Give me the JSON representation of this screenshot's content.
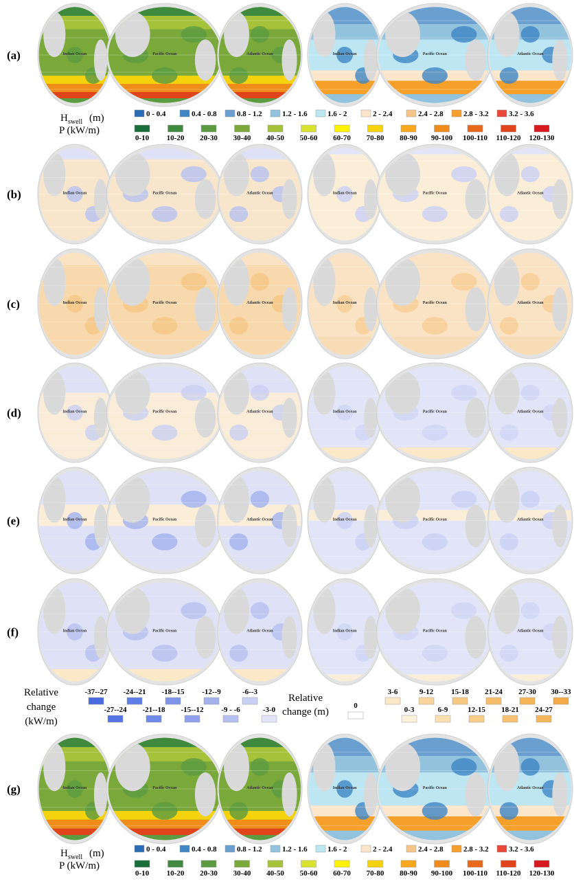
{
  "panels": [
    {
      "label": "(a)",
      "maps": [
        {
          "ocean_labels": [
            "Indian Ocean",
            "Pacific Ocean",
            "Atlantic Ocean"
          ]
        },
        {
          "ocean_labels": [
            "Indian Ocean",
            "Pacific Ocean",
            "Atlantic Ocean"
          ]
        }
      ]
    },
    {
      "label": "(b)",
      "maps": [
        {
          "ocean_labels": [
            "Indian Ocean",
            "Pacific Ocean",
            "Atlantic Ocean"
          ]
        },
        {
          "ocean_labels": [
            "Indian Ocean",
            "Pacific Ocean",
            "Atlantic Ocean"
          ]
        }
      ]
    },
    {
      "label": "(c)",
      "maps": [
        {
          "ocean_labels": [
            "Indian Ocean",
            "Pacific Ocean",
            "Atlantic Ocean"
          ]
        },
        {
          "ocean_labels": [
            "Indian Ocean",
            "Pacific Ocean",
            "Atlantic Ocean"
          ]
        }
      ]
    },
    {
      "label": "(d)",
      "maps": [
        {
          "ocean_labels": [
            "Indian Ocean",
            "Pacific Ocean",
            "Atlantic Ocean"
          ]
        },
        {
          "ocean_labels": [
            "Indian Ocean",
            "Pacific Ocean",
            "Atlantic Ocean"
          ]
        }
      ]
    },
    {
      "label": "(e)",
      "maps": [
        {
          "ocean_labels": [
            "Indian Ocean",
            "Pacific Ocean",
            "Atlantic Ocean"
          ]
        },
        {
          "ocean_labels": [
            "Indian Ocean",
            "Pacific Ocean",
            "Atlantic Ocean"
          ]
        }
      ]
    },
    {
      "label": "(f)",
      "maps": [
        {
          "ocean_labels": [
            "Indian Ocean",
            "Pacific Ocean",
            "Atlantic Ocean"
          ]
        },
        {
          "ocean_labels": [
            "Indian Ocean",
            "Pacific Ocean",
            "Atlantic Ocean"
          ]
        }
      ]
    },
    {
      "label": "(g)",
      "maps": [
        {
          "ocean_labels": [
            "Indian Ocean",
            "Pacific Ocean",
            "Atlantic Ocean"
          ]
        },
        {
          "ocean_labels": [
            "Indian Ocean",
            "Pacific Ocean",
            "Atlantic Ocean"
          ]
        }
      ]
    }
  ],
  "legends": [
    {
      "h_label": {
        "main": "H",
        "sub": "swell",
        "unit": "(m)"
      },
      "h_items": [
        {
          "label": "0 - 0.4",
          "color": "#2a6db5"
        },
        {
          "label": "0.4 - 0.8",
          "color": "#3f86c4"
        },
        {
          "label": "0.8 - 1.2",
          "color": "#6a9fcf"
        },
        {
          "label": "1.2 - 1.6",
          "color": "#93c2dd"
        },
        {
          "label": "1.6 - 2",
          "color": "#bde6f2"
        },
        {
          "label": "2 - 2.4",
          "color": "#fbe6cc"
        },
        {
          "label": "2.4 - 2.8",
          "color": "#f7c48a"
        },
        {
          "label": "2.8 - 3.2",
          "color": "#f5a02a"
        },
        {
          "label": "3.2 - 3.6",
          "color": "#e8473a"
        }
      ],
      "p_label": "P (kW/m)",
      "p_items": [
        {
          "label": "0-10",
          "color": "#1a6e3a"
        },
        {
          "label": "10-20",
          "color": "#3f8a3e"
        },
        {
          "label": "20-30",
          "color": "#5d9b42"
        },
        {
          "label": "30-40",
          "color": "#7aa83a"
        },
        {
          "label": "40-50",
          "color": "#a6c23a"
        },
        {
          "label": "50-60",
          "color": "#d9e22e"
        },
        {
          "label": "60-70",
          "color": "#fff200"
        },
        {
          "label": "70-80",
          "color": "#f5d20e"
        },
        {
          "label": "80-90",
          "color": "#f7a81c"
        },
        {
          "label": "90-100",
          "color": "#f08c1a"
        },
        {
          "label": "100-110",
          "color": "#e8681c"
        },
        {
          "label": "110-120",
          "color": "#e0441c"
        },
        {
          "label": "120-130",
          "color": "#d71920"
        }
      ]
    },
    {
      "h_label": {
        "main": "H",
        "sub": "swell",
        "unit": "(m)"
      },
      "h_items": [
        {
          "label": "0 - 0.4",
          "color": "#2a6db5"
        },
        {
          "label": "0.4 - 0.8",
          "color": "#3f86c4"
        },
        {
          "label": "0.8 - 1.2",
          "color": "#6a9fcf"
        },
        {
          "label": "1.2 - 1.6",
          "color": "#93c2dd"
        },
        {
          "label": "1.6 - 2",
          "color": "#bde6f2"
        },
        {
          "label": "2 - 2.4",
          "color": "#fbe6cc"
        },
        {
          "label": "2.4 - 2.8",
          "color": "#f7c48a"
        },
        {
          "label": "2.8 - 3.2",
          "color": "#f5a02a"
        },
        {
          "label": "3.2 - 3.6",
          "color": "#e8473a"
        }
      ],
      "p_label": "P (kW/m)",
      "p_items": [
        {
          "label": "0-10",
          "color": "#1a6e3a"
        },
        {
          "label": "10-20",
          "color": "#3f8a3e"
        },
        {
          "label": "20-30",
          "color": "#5d9b42"
        },
        {
          "label": "30-40",
          "color": "#7aa83a"
        },
        {
          "label": "40-50",
          "color": "#a6c23a"
        },
        {
          "label": "50-60",
          "color": "#d9e22e"
        },
        {
          "label": "60-70",
          "color": "#fff200"
        },
        {
          "label": "70-80",
          "color": "#f5d20e"
        },
        {
          "label": "80-90",
          "color": "#f7a81c"
        },
        {
          "label": "90-100",
          "color": "#f08c1a"
        },
        {
          "label": "100-110",
          "color": "#e8681c"
        },
        {
          "label": "110-120",
          "color": "#e0441c"
        },
        {
          "label": "120-130",
          "color": "#d71920"
        }
      ]
    }
  ],
  "relative_legend": {
    "power": {
      "title_lines": [
        "Relative",
        "change",
        "(kW/m)"
      ],
      "top": [
        {
          "label": "-37--27",
          "color": "#4a6be0"
        },
        {
          "label": "-24--21",
          "color": "#5e7de6"
        },
        {
          "label": "-18--15",
          "color": "#7f95ea"
        },
        {
          "label": "-12--9",
          "color": "#a3b1ee"
        },
        {
          "label": "-6--3",
          "color": "#c9d0f3"
        }
      ],
      "bottom": [
        {
          "label": "-27--24",
          "color": "#5573e3"
        },
        {
          "label": "-21--18",
          "color": "#6e89e8"
        },
        {
          "label": "-15--12",
          "color": "#909fec"
        },
        {
          "label": "-9 - -6",
          "color": "#b6c0f0"
        },
        {
          "label": "-3-0",
          "color": "#e2e5f8"
        }
      ]
    },
    "height": {
      "title_lines": [
        "Relative",
        "change (m)"
      ],
      "zero": {
        "label": "0",
        "color": "#ffffff"
      },
      "top": [
        {
          "label": "3-6",
          "color": "#fbe8c6"
        },
        {
          "label": "9-12",
          "color": "#f9d59b"
        },
        {
          "label": "15-18",
          "color": "#f7c882"
        },
        {
          "label": "21-24",
          "color": "#f6bd6c"
        },
        {
          "label": "27-30",
          "color": "#f5b456"
        },
        {
          "label": "30--33",
          "color": "#f3ab48"
        }
      ],
      "bottom": [
        {
          "label": "0-3",
          "color": "#fdf1dc"
        },
        {
          "label": "6-9",
          "color": "#fadfb0"
        },
        {
          "label": "12-15",
          "color": "#f8cd8a"
        },
        {
          "label": "18-21",
          "color": "#f7c172"
        },
        {
          "label": "24-27",
          "color": "#f5b75c"
        }
      ]
    }
  }
}
